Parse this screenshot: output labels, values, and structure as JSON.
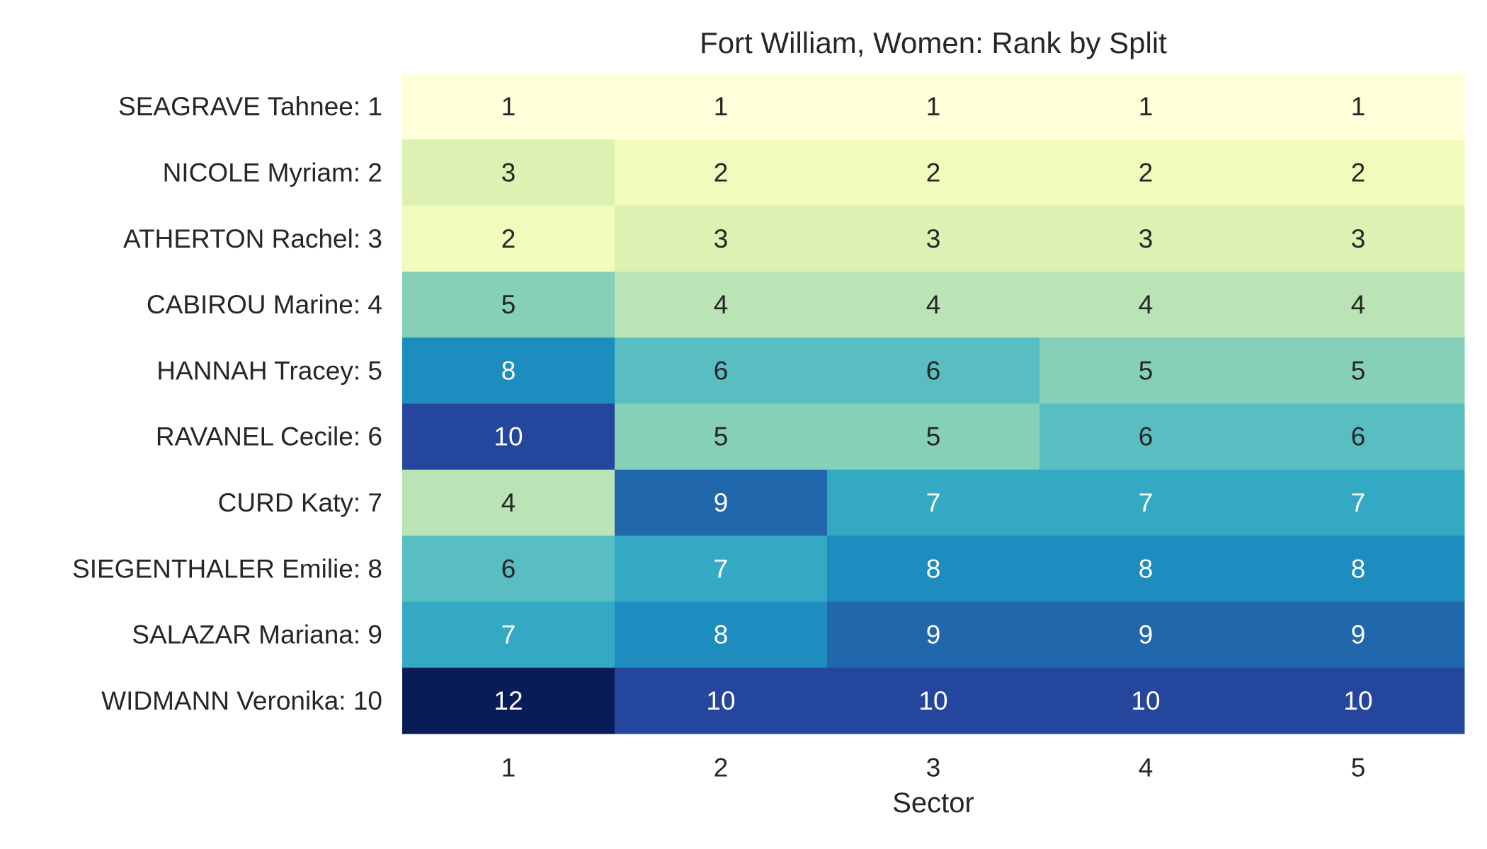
{
  "chart_data": {
    "type": "heatmap",
    "title": "Fort William, Women: Rank by Split",
    "xlabel": "Sector",
    "ylabel": "",
    "x": [
      "1",
      "2",
      "3",
      "4",
      "5"
    ],
    "y": [
      "SEAGRAVE Tahnee: 1",
      "NICOLE Myriam: 2",
      "ATHERTON Rachel: 3",
      "CABIROU Marine: 4",
      "HANNAH Tracey: 5",
      "RAVANEL Cecile: 6",
      "CURD Katy: 7",
      "SIEGENTHALER Emilie: 8",
      "SALAZAR Mariana: 9",
      "WIDMANN Veronika: 10"
    ],
    "values": [
      [
        1,
        1,
        1,
        1,
        1
      ],
      [
        3,
        2,
        2,
        2,
        2
      ],
      [
        2,
        3,
        3,
        3,
        3
      ],
      [
        5,
        4,
        4,
        4,
        4
      ],
      [
        8,
        6,
        6,
        5,
        5
      ],
      [
        10,
        5,
        5,
        6,
        6
      ],
      [
        4,
        9,
        7,
        7,
        7
      ],
      [
        6,
        7,
        8,
        8,
        8
      ],
      [
        7,
        8,
        9,
        9,
        9
      ],
      [
        12,
        10,
        10,
        10,
        10
      ]
    ],
    "colormap": "YlGnBu",
    "vmin": 1,
    "vmax": 12,
    "colorbar": false,
    "grid": false,
    "annotations": true
  }
}
